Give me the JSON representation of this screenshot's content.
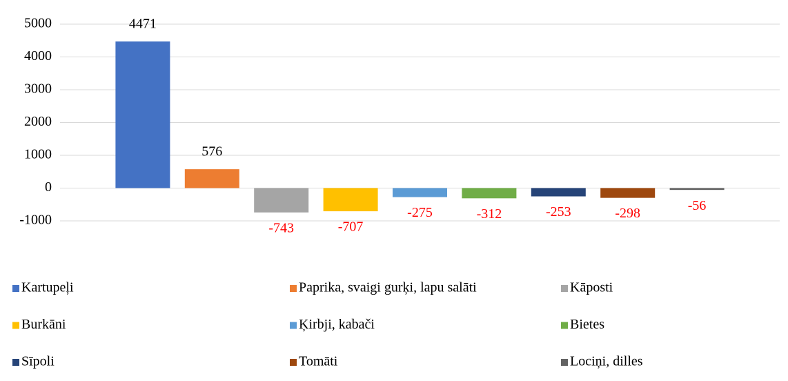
{
  "chart_data": {
    "type": "bar",
    "series": [
      {
        "name": "Kartupeļi",
        "color": "#4472c4",
        "values": [
          4471
        ]
      },
      {
        "name": "Paprika, svaigi gurķi, lapu salāti",
        "color": "#ed7d31",
        "values": [
          576
        ]
      },
      {
        "name": "Kāposti",
        "color": "#a5a5a5",
        "values": [
          -743
        ]
      },
      {
        "name": "Burkāni",
        "color": "#ffc000",
        "values": [
          -707
        ]
      },
      {
        "name": "Ķirbji, kabači",
        "color": "#5b9bd5",
        "values": [
          -275
        ]
      },
      {
        "name": "Bietes",
        "color": "#70ad47",
        "values": [
          -312
        ]
      },
      {
        "name": "Sīpoli",
        "color": "#264478",
        "values": [
          -253
        ]
      },
      {
        "name": "Tomāti",
        "color": "#9e480e",
        "values": [
          -298
        ]
      },
      {
        "name": "Lociņi, dilles",
        "color": "#636363",
        "values": [
          -56
        ]
      }
    ],
    "ylim": [
      -1000,
      5000
    ],
    "yticks": [
      -1000,
      0,
      1000,
      2000,
      3000,
      4000,
      5000
    ],
    "grid": true,
    "legend": "bottom",
    "negative_label_color": "#ff0000"
  }
}
